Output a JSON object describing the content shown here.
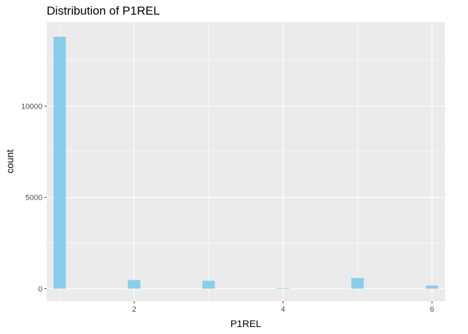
{
  "chart_data": {
    "type": "bar",
    "title": "Distribution of P1REL",
    "xlabel": "P1REL",
    "ylabel": "count",
    "bar_color": "#87ceeb",
    "panel_color": "#ebebeb",
    "grid_color": "#ffffff",
    "xlim": [
      0.825,
      6.175
    ],
    "ylim": [
      -695,
      14595
    ],
    "x_ticks": [
      2,
      4,
      6
    ],
    "x_tick_labels": [
      "2",
      "4",
      "6"
    ],
    "y_ticks": [
      0,
      5000,
      10000
    ],
    "y_tick_labels": [
      "0",
      "5000",
      "10000"
    ],
    "bin_width": 0.1667,
    "bins": [
      {
        "x": 1.0,
        "count": 13800
      },
      {
        "x": 2.0,
        "count": 470
      },
      {
        "x": 3.0,
        "count": 430
      },
      {
        "x": 4.0,
        "count": 30
      },
      {
        "x": 5.0,
        "count": 580
      },
      {
        "x": 6.0,
        "count": 170
      }
    ]
  }
}
